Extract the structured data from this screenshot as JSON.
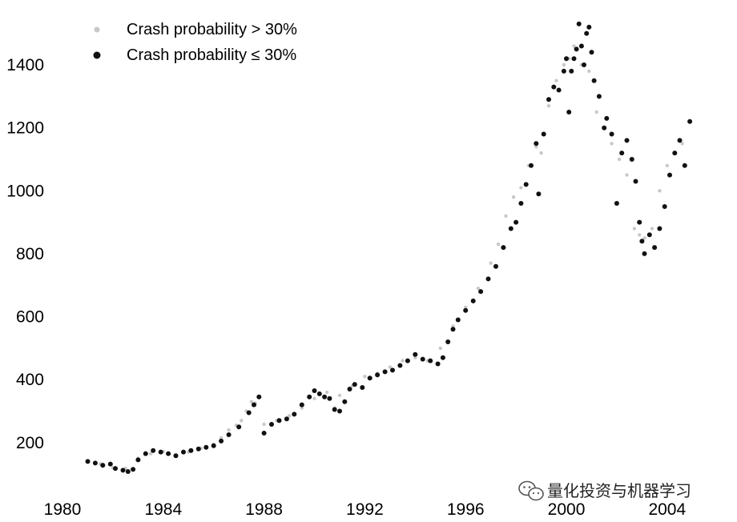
{
  "chart_data": {
    "type": "scatter",
    "title": "",
    "xlabel": "",
    "ylabel": "",
    "xlim": [
      1980,
      2005.5
    ],
    "ylim": [
      80,
      1540
    ],
    "x_ticks": [
      "1980",
      "1984",
      "1988",
      "1992",
      "1996",
      "2000",
      "2004"
    ],
    "y_ticks": [
      "200",
      "400",
      "600",
      "800",
      "1000",
      "1200",
      "1400"
    ],
    "legend_position": "top-left",
    "grid": false,
    "series": [
      {
        "name": "Crash probability > 30%",
        "color": "#c8c8c8",
        "x": [
          1981.0,
          1981.5,
          1982.0,
          1982.5,
          1983.0,
          1983.5,
          1984.0,
          1984.5,
          1985.0,
          1985.5,
          1986.0,
          1986.3,
          1986.6,
          1986.9,
          1987.1,
          1987.3,
          1987.5,
          1987.65,
          1988.0,
          1988.5,
          1989.0,
          1989.5,
          1990.0,
          1990.5,
          1990.8,
          1991.0,
          1991.5,
          1992.0,
          1992.5,
          1993.0,
          1993.5,
          1994.0,
          1994.5,
          1995.0,
          1995.5,
          1996.0,
          1996.5,
          1997.0,
          1997.3,
          1997.6,
          1997.9,
          1998.2,
          1998.5,
          1998.8,
          1999.0,
          1999.3,
          1999.6,
          1999.9,
          2000.1,
          2000.3,
          2000.6,
          2000.9,
          2001.2,
          2001.5,
          2001.8,
          2002.1,
          2002.4,
          2002.7,
          2002.9,
          2003.1,
          2003.4,
          2003.7,
          2004.0,
          2004.3,
          2004.6
        ],
        "y": [
          140,
          132,
          120,
          118,
          150,
          165,
          172,
          160,
          170,
          182,
          195,
          215,
          240,
          255,
          270,
          300,
          330,
          325,
          258,
          270,
          285,
          310,
          340,
          360,
          310,
          350,
          380,
          410,
          420,
          440,
          460,
          470,
          460,
          500,
          570,
          630,
          690,
          770,
          830,
          920,
          980,
          1010,
          1080,
          1140,
          1120,
          1270,
          1350,
          1400,
          1420,
          1460,
          1400,
          1380,
          1250,
          1200,
          1150,
          1100,
          1050,
          880,
          860,
          850,
          880,
          1000,
          1080,
          1120,
          1150
        ]
      },
      {
        "name": "Crash probability ≤ 30%",
        "color": "#111111",
        "x": [
          1981.0,
          1981.3,
          1981.6,
          1981.9,
          1982.1,
          1982.4,
          1982.6,
          1982.8,
          1983.0,
          1983.3,
          1983.6,
          1983.9,
          1984.2,
          1984.5,
          1984.8,
          1985.1,
          1985.4,
          1985.7,
          1986.0,
          1986.3,
          1986.6,
          1987.0,
          1987.4,
          1987.6,
          1987.8,
          1988.0,
          1988.3,
          1988.6,
          1988.9,
          1989.2,
          1989.5,
          1989.8,
          1990.0,
          1990.2,
          1990.4,
          1990.6,
          1990.8,
          1991.0,
          1991.2,
          1991.4,
          1991.6,
          1991.9,
          1992.2,
          1992.5,
          1992.8,
          1993.1,
          1993.4,
          1993.7,
          1994.0,
          1994.3,
          1994.6,
          1994.9,
          1995.1,
          1995.3,
          1995.5,
          1995.7,
          1996.0,
          1996.3,
          1996.6,
          1996.9,
          1997.2,
          1997.5,
          1997.8,
          1998.0,
          1998.2,
          1998.4,
          1998.6,
          1998.8,
          1998.9,
          1999.1,
          1999.3,
          1999.5,
          1999.7,
          1999.9,
          2000.0,
          2000.1,
          2000.2,
          2000.3,
          2000.4,
          2000.5,
          2000.6,
          2000.7,
          2000.8,
          2000.9,
          2001.0,
          2001.1,
          2001.3,
          2001.5,
          2001.6,
          2001.8,
          2002.0,
          2002.2,
          2002.4,
          2002.6,
          2002.75,
          2002.9,
          2003.0,
          2003.1,
          2003.3,
          2003.5,
          2003.7,
          2003.9,
          2004.1,
          2004.3,
          2004.5,
          2004.7,
          2004.9
        ],
        "y": [
          140,
          135,
          128,
          132,
          118,
          112,
          108,
          115,
          145,
          165,
          175,
          170,
          165,
          158,
          170,
          175,
          180,
          185,
          190,
          205,
          225,
          250,
          295,
          320,
          345,
          230,
          258,
          270,
          275,
          290,
          320,
          345,
          365,
          355,
          345,
          340,
          305,
          300,
          330,
          370,
          385,
          375,
          405,
          415,
          425,
          430,
          445,
          460,
          480,
          465,
          460,
          450,
          470,
          520,
          560,
          590,
          620,
          650,
          680,
          720,
          760,
          820,
          880,
          900,
          960,
          1020,
          1080,
          1150,
          990,
          1180,
          1290,
          1330,
          1320,
          1380,
          1420,
          1250,
          1380,
          1420,
          1450,
          1530,
          1460,
          1400,
          1500,
          1520,
          1440,
          1350,
          1300,
          1200,
          1230,
          1180,
          960,
          1120,
          1160,
          1100,
          1030,
          900,
          840,
          800,
          860,
          820,
          880,
          950,
          1050,
          1120,
          1160,
          1080,
          1220
        ]
      }
    ]
  },
  "watermark": {
    "icon": "wechat-icon",
    "text": "量化投资与机器学习"
  }
}
